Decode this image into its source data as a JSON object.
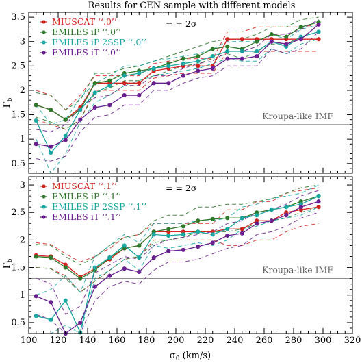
{
  "title": "Results for CEN sample with different models",
  "colors": {
    "red": "#d2231f",
    "green": "#2f7a2c",
    "teal": "#1aa7a1",
    "purple": "#6a2190",
    "gray": "#8c8c8c"
  },
  "chart_data": [
    {
      "type": "line",
      "panel": "top",
      "xlabel": "σ0 (km/s)",
      "ylabel": "Γb",
      "xlim": [
        100,
        320
      ],
      "ylim": [
        0.3,
        3.6
      ],
      "x_ticks": [
        100,
        120,
        140,
        160,
        180,
        200,
        220,
        240,
        260,
        280,
        300,
        320
      ],
      "y_ticks": [
        0.5,
        1,
        1.5,
        2,
        2.5,
        3,
        3.5
      ],
      "reference_line": {
        "y": 1.3,
        "label": "Kroupa-like IMF"
      },
      "band_legend": "= = 2σ",
      "x": [
        105,
        115,
        125,
        135,
        145,
        155,
        165,
        175,
        185,
        195,
        205,
        215,
        225,
        235,
        245,
        255,
        265,
        275,
        285,
        297
      ],
      "series": [
        {
          "name": "MIUSCAT ‘‘.0’’",
          "color": "red",
          "values": [
            1.7,
            1.6,
            1.4,
            1.65,
            2.15,
            2.15,
            2.15,
            2.15,
            2.4,
            2.45,
            2.5,
            2.5,
            2.5,
            3.05,
            3.05,
            3.05,
            3.05,
            3.05,
            3.05,
            3.05
          ],
          "upper": [
            2.0,
            1.9,
            1.6,
            1.9,
            2.3,
            2.3,
            2.3,
            2.3,
            2.55,
            2.6,
            2.65,
            2.65,
            2.65,
            3.2,
            3.2,
            3.3,
            3.3,
            3.3,
            3.3,
            3.35
          ],
          "lower": [
            1.4,
            1.3,
            1.2,
            1.4,
            2.0,
            2.0,
            2.0,
            2.0,
            2.25,
            2.3,
            2.35,
            2.35,
            2.35,
            2.8,
            2.8,
            2.8,
            2.8,
            2.8,
            2.8,
            2.8
          ]
        },
        {
          "name": "EMILES iP ‘‘.0’’",
          "color": "green",
          "values": [
            1.7,
            1.6,
            1.4,
            1.6,
            2.15,
            2.2,
            2.35,
            2.4,
            2.45,
            2.55,
            2.65,
            2.7,
            2.85,
            2.9,
            2.85,
            3.0,
            3.15,
            3.1,
            3.3,
            3.4
          ],
          "upper": [
            1.95,
            1.9,
            1.6,
            1.8,
            2.35,
            2.35,
            2.45,
            2.5,
            2.6,
            2.7,
            2.8,
            2.9,
            3.0,
            3.05,
            3.05,
            3.15,
            3.3,
            3.3,
            3.45,
            3.5
          ],
          "lower": [
            1.45,
            1.35,
            1.2,
            1.4,
            1.95,
            2.05,
            2.2,
            2.2,
            2.3,
            2.4,
            2.5,
            2.55,
            2.65,
            2.75,
            2.65,
            2.8,
            2.95,
            2.95,
            3.1,
            3.2
          ]
        },
        {
          "name": "EMILES iP 2SSP ‘‘.0’’",
          "color": "teal",
          "values": [
            1.38,
            0.72,
            1.07,
            1.6,
            1.95,
            2.1,
            2.3,
            2.35,
            2.45,
            2.5,
            2.55,
            2.6,
            2.7,
            2.8,
            2.8,
            2.8,
            3.0,
            2.9,
            3.1,
            3.2
          ],
          "upper": [
            1.7,
            1.3,
            1.4,
            1.85,
            2.15,
            2.3,
            2.5,
            2.5,
            2.6,
            2.65,
            2.7,
            2.75,
            2.85,
            3.0,
            3.0,
            3.0,
            3.15,
            3.05,
            3.25,
            3.35
          ],
          "lower": [
            1.0,
            0.3,
            0.7,
            1.35,
            1.75,
            1.9,
            2.1,
            2.2,
            2.3,
            2.35,
            2.4,
            2.45,
            2.55,
            2.65,
            2.6,
            2.6,
            2.85,
            2.75,
            2.95,
            3.05
          ]
        },
        {
          "name": "EMILES iT ‘‘.0’’",
          "color": "purple",
          "values": [
            0.9,
            0.85,
            0.98,
            1.4,
            1.65,
            1.7,
            1.9,
            1.9,
            2.15,
            2.15,
            2.3,
            2.4,
            2.45,
            2.65,
            2.65,
            2.7,
            3.0,
            2.95,
            3.05,
            3.35
          ],
          "upper": [
            1.2,
            1.15,
            1.3,
            1.65,
            1.85,
            1.9,
            2.1,
            2.1,
            2.3,
            2.3,
            2.45,
            2.55,
            2.6,
            2.8,
            2.8,
            2.9,
            3.15,
            3.15,
            3.25,
            3.45
          ],
          "lower": [
            0.6,
            0.55,
            0.65,
            1.15,
            1.45,
            1.5,
            1.7,
            1.7,
            2.0,
            2.0,
            2.15,
            2.25,
            2.3,
            2.5,
            2.5,
            2.5,
            2.85,
            2.75,
            2.85,
            3.2
          ]
        }
      ]
    },
    {
      "type": "line",
      "panel": "bottom",
      "xlabel": "σ0 (km/s)",
      "ylabel": "Γb",
      "xlim": [
        100,
        320
      ],
      "ylim": [
        0.3,
        3.15
      ],
      "x_ticks": [
        100,
        120,
        140,
        160,
        180,
        200,
        220,
        240,
        260,
        280,
        300,
        320
      ],
      "y_ticks": [
        0.5,
        1,
        1.5,
        2,
        2.5,
        3
      ],
      "reference_line": {
        "y": 1.3,
        "label": "Kroupa-like IMF"
      },
      "band_legend": "= = 2σ",
      "x": [
        105,
        115,
        125,
        135,
        145,
        155,
        165,
        175,
        185,
        195,
        205,
        215,
        225,
        235,
        245,
        255,
        265,
        275,
        285,
        297
      ],
      "series": [
        {
          "name": "MIUSCAT ‘‘.1’’",
          "color": "red",
          "values": [
            1.72,
            1.7,
            1.55,
            1.33,
            1.48,
            1.65,
            1.85,
            1.9,
            2.15,
            2.15,
            2.15,
            2.15,
            2.15,
            2.2,
            2.2,
            2.35,
            2.35,
            2.5,
            2.55,
            2.6
          ],
          "upper": [
            1.95,
            1.92,
            1.75,
            1.6,
            1.7,
            1.85,
            2.05,
            2.1,
            2.3,
            2.3,
            2.3,
            2.3,
            2.3,
            2.55,
            2.55,
            2.7,
            2.7,
            2.85,
            2.9,
            2.95
          ],
          "lower": [
            1.5,
            1.48,
            1.35,
            1.05,
            1.25,
            1.45,
            1.65,
            1.7,
            2.0,
            2.0,
            2.0,
            2.0,
            2.0,
            1.9,
            1.9,
            2.0,
            2.0,
            2.15,
            2.25,
            2.3
          ]
        },
        {
          "name": "EMILES iP ‘‘.1’’",
          "color": "green",
          "values": [
            1.7,
            1.68,
            1.5,
            1.3,
            1.45,
            1.68,
            1.85,
            1.9,
            2.15,
            2.2,
            2.25,
            2.35,
            2.38,
            2.4,
            2.4,
            2.5,
            2.55,
            2.6,
            2.7,
            2.8
          ],
          "upper": [
            1.92,
            1.9,
            1.7,
            1.55,
            1.68,
            1.9,
            2.05,
            2.1,
            2.35,
            2.45,
            2.45,
            2.6,
            2.6,
            2.65,
            2.65,
            2.7,
            2.75,
            2.85,
            2.95,
            3.0
          ],
          "lower": [
            1.5,
            1.48,
            1.3,
            1.05,
            1.25,
            1.45,
            1.65,
            1.7,
            1.95,
            2.0,
            2.05,
            2.15,
            2.15,
            2.15,
            2.2,
            2.3,
            2.35,
            2.4,
            2.5,
            2.6
          ]
        },
        {
          "name": "EMILES iP 2SSP ‘‘.1’’",
          "color": "teal",
          "values": [
            0.62,
            0.55,
            0.9,
            0.32,
            1.5,
            1.68,
            1.9,
            1.68,
            2.1,
            2.08,
            2.1,
            2.15,
            2.1,
            2.2,
            2.4,
            2.45,
            2.55,
            2.6,
            2.65,
            2.8
          ],
          "upper": [
            1.0,
            1.1,
            1.35,
            1.05,
            1.7,
            1.9,
            2.1,
            1.95,
            2.3,
            2.3,
            2.3,
            2.35,
            2.35,
            2.4,
            2.6,
            2.65,
            2.75,
            2.8,
            2.85,
            3.0
          ],
          "lower": [
            0.3,
            0.3,
            0.45,
            0.3,
            1.3,
            1.45,
            1.65,
            1.45,
            1.9,
            1.85,
            1.9,
            1.95,
            1.9,
            2.0,
            2.2,
            2.25,
            2.35,
            2.4,
            2.45,
            2.6
          ]
        },
        {
          "name": "EMILES iT ‘‘.1’’",
          "color": "purple",
          "values": [
            0.98,
            0.87,
            0.3,
            0.5,
            1.15,
            1.35,
            1.48,
            1.42,
            1.68,
            1.8,
            1.82,
            1.88,
            1.95,
            2.08,
            2.12,
            2.3,
            2.35,
            2.45,
            2.6,
            2.7
          ],
          "upper": [
            1.3,
            1.2,
            0.65,
            0.8,
            1.4,
            1.55,
            1.7,
            1.65,
            1.9,
            2.0,
            2.05,
            2.1,
            2.15,
            2.3,
            2.35,
            2.5,
            2.55,
            2.65,
            2.8,
            2.9
          ],
          "lower": [
            0.65,
            0.55,
            0.3,
            0.3,
            0.9,
            1.15,
            1.25,
            1.2,
            1.45,
            1.6,
            1.6,
            1.65,
            1.75,
            1.85,
            1.9,
            2.1,
            2.15,
            2.25,
            2.4,
            2.5
          ]
        }
      ]
    }
  ]
}
